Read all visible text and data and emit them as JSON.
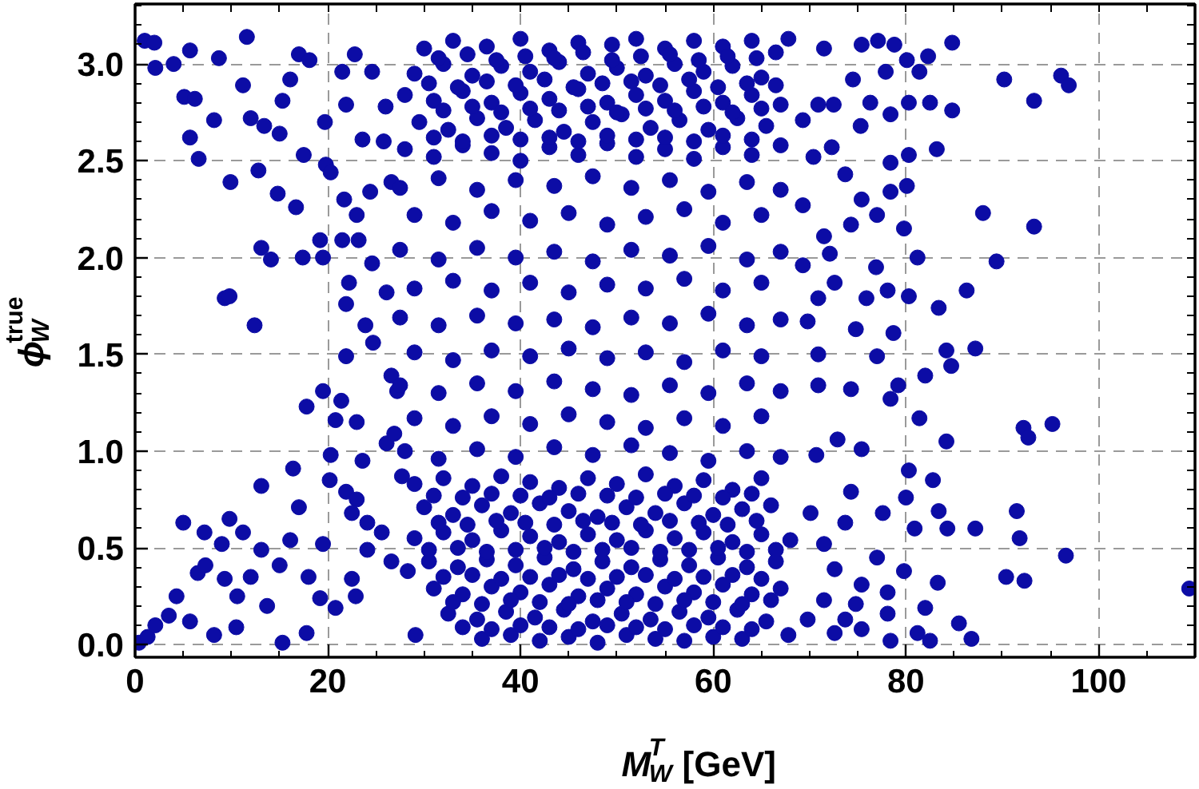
{
  "chart_data": {
    "type": "scatter",
    "xlabel": "M$^{T}$$_{W}$ [GeV]",
    "ylabel": "ϕ$_{W}$$^{true}$",
    "xlim": [
      0,
      110
    ],
    "ylim": [
      -0.065,
      3.31
    ],
    "xticks": [
      0,
      20,
      40,
      60,
      80,
      100
    ],
    "yticks": [
      {
        "value": 0,
        "label": "0.0"
      },
      0.5,
      {
        "value": 1,
        "label": "1.0"
      },
      1.5,
      {
        "value": 2,
        "label": "2.0"
      },
      2.5,
      {
        "value": 3,
        "label": "3.0"
      }
    ],
    "grid": true,
    "marker": "circle",
    "series": [
      {
        "color": "#0c0ca5",
        "x": [
          1.0,
          2.0,
          2.1,
          4.0,
          5.7,
          5.1,
          6.2,
          5.7,
          6.6,
          8.7,
          8.2,
          9.9,
          11.6,
          11.2,
          12.0,
          13.1,
          14.1,
          9.3,
          9.8,
          12.4,
          12.8,
          13.4,
          15.0,
          15.3,
          16.1,
          17.0,
          18.1,
          17.5,
          14.8,
          16.7,
          19.2,
          19.5,
          19.8,
          17.4,
          0.4,
          1.3,
          2.1,
          3.5,
          4.3,
          5.0,
          5.7,
          6.5,
          7.2,
          7.3,
          8.2,
          9.0,
          9.3,
          9.8,
          10.6,
          10.5,
          11.2,
          12.0,
          13.1,
          13.1,
          13.7,
          15.0,
          15.3,
          16.1,
          16.4,
          17.0,
          17.8,
          18.0,
          17.8,
          19.2,
          19.5,
          20.2,
          20.3,
          19.5,
          20.8,
          21.4,
          22.5,
          22.9,
          21.5,
          22.8,
          24.6,
          26.0,
          21.9,
          23.6,
          19.7,
          20.3,
          21.7,
          23.0,
          24.4,
          21.5,
          23.2,
          25.8,
          26.6,
          24.6,
          22.2,
          26.1,
          21.9,
          23.9,
          21.9,
          24.7,
          26.6,
          20.8,
          23.0,
          23.6,
          26.1,
          21.9,
          23.0,
          22.5,
          24.1,
          25.6,
          24.1,
          26.6,
          27.7,
          26.9,
          28.3,
          29.1,
          27.2,
          30,
          33,
          36.5,
          40,
          43,
          46,
          49.5,
          52,
          55,
          58,
          61,
          64,
          66.5,
          29,
          32,
          35,
          38,
          41,
          44,
          47,
          50,
          53,
          56,
          59,
          62,
          65,
          28,
          31,
          34,
          37,
          40,
          43,
          46,
          49,
          52,
          55,
          58,
          61,
          64,
          67,
          29.5,
          32.5,
          35.5,
          38.5,
          41.5,
          44.5,
          47.5,
          50.5,
          53.5,
          56.5,
          59.5,
          62.5,
          65.5,
          28,
          31,
          34,
          37,
          40,
          43,
          46,
          49,
          52,
          55,
          58,
          61,
          64,
          67,
          27.5,
          31.5,
          35.5,
          39.5,
          43.5,
          47.5,
          51.5,
          55.5,
          59.5,
          63.5,
          67,
          29,
          33,
          37,
          41,
          45,
          49,
          53,
          57,
          61,
          65,
          27.5,
          31.5,
          35.5,
          39.5,
          43.5,
          47.5,
          51.5,
          55.5,
          59.5,
          63.5,
          67,
          29,
          33,
          37,
          41,
          45,
          49,
          53,
          57,
          61,
          65,
          27.5,
          31.5,
          35.5,
          39.5,
          43.5,
          47.5,
          51.5,
          55.5,
          59.5,
          63.5,
          67,
          29,
          33,
          37,
          41,
          45,
          49,
          53,
          57,
          61,
          65,
          27.5,
          31.5,
          35.5,
          39.5,
          43.5,
          47.5,
          51.5,
          55.5,
          59.5,
          63.5,
          67,
          29,
          33,
          37,
          41,
          45,
          49,
          53,
          57,
          61,
          65,
          28,
          31.5,
          35.5,
          39.5,
          43.5,
          47.5,
          51.5,
          55.5,
          59.5,
          63.5,
          67,
          29,
          32,
          35,
          38,
          41,
          44,
          47,
          50,
          53,
          56,
          59,
          62,
          65,
          30,
          33,
          36,
          39,
          42,
          45,
          48,
          51,
          54,
          57,
          60,
          63,
          66,
          29,
          32,
          35,
          38,
          41,
          44,
          47,
          50,
          53,
          56,
          59,
          62,
          65,
          68,
          30.5,
          33.5,
          36.5,
          39.5,
          42.5,
          45.5,
          48.5,
          51.5,
          54.5,
          57.5,
          60.5,
          63.5,
          66.5,
          31,
          34,
          37,
          40,
          43,
          46,
          49,
          52,
          55,
          58,
          61,
          64,
          67,
          32.5,
          35.5,
          38.5,
          41.5,
          44.5,
          47.5,
          50.5,
          53.5,
          56.5,
          59.5,
          62.5,
          65.5,
          36,
          39,
          42,
          45,
          48,
          51,
          54,
          57,
          60,
          63,
          84.8,
          90.2,
          96.1,
          96.9,
          93.3,
          84.8,
          88.0,
          93.3,
          89.4,
          86.3,
          87.2,
          83.2,
          82.3,
          92.2,
          95.2,
          92.7,
          91.5,
          91.8,
          96.6,
          90.4,
          92.3,
          109.4,
          87.2,
          86.8,
          85.5,
          84.3,
          83.3,
          67.8,
          71.5,
          75.4,
          77.1,
          78.8,
          80.1,
          74.5,
          77.9,
          81.4,
          80.3,
          82.5,
          76.3,
          72.5,
          70.9,
          69.3,
          78.4,
          75.3,
          72.3,
          78.4,
          80.3,
          70.4,
          73.7,
          80.1,
          75.4,
          78.4,
          69.3,
          71.5,
          74.3,
          77.0,
          79.8,
          81.2,
          76.9,
          72.1,
          69.3,
          72.6,
          78.1,
          83.4,
          80.3,
          75.9,
          70.9,
          69.8,
          74.8,
          78.7,
          84.2,
          70.9,
          77.0,
          84.7,
          82.0,
          70.9,
          74.3,
          79.2,
          78.4,
          81.4,
          84.2,
          72.9,
          75.4,
          80.3,
          82.8,
          70.7,
          74.3,
          77.6,
          83.4,
          80.0,
          70.1,
          73.7,
          80.9,
          71.5,
          77.0,
          79.8,
          72.6,
          75.4,
          78.1,
          71.5,
          74.8,
          82.0,
          78.1,
          73.7,
          72.6,
          75.4,
          78.4,
          81.2,
          82.5,
          69.8,
          67.8,
          31.5,
          34.5,
          37.5,
          40.5,
          43.5,
          46.5,
          49.5,
          52.5,
          55.5,
          58.5,
          61.5,
          64.5,
          30.5,
          33.5,
          36.5,
          39.5,
          42.5,
          45.5,
          48.5,
          51.5,
          54.5,
          57.5,
          60.5,
          63.5,
          66.5,
          32,
          35,
          38,
          41,
          44,
          47,
          50,
          53,
          56,
          59,
          62,
          65,
          31,
          34,
          37,
          40,
          43,
          46,
          49,
          52,
          55,
          58,
          61,
          64,
          31,
          34,
          37,
          40,
          43,
          46,
          49,
          52,
          55,
          58,
          61,
          64,
          31.5,
          34.5,
          37.5,
          40.5,
          43.5,
          46.5,
          49.5,
          52.5,
          55.5,
          58.5,
          61.5,
          64.5,
          30.5,
          33.5,
          36.5,
          39.5,
          42.5,
          45.5,
          48.5,
          51.5,
          54.5,
          57.5,
          60.5,
          63.5,
          66.5,
          32,
          35,
          38,
          41,
          44,
          47,
          50,
          53,
          56,
          59,
          62,
          65,
          33,
          36,
          39,
          42,
          45,
          48,
          51,
          54,
          57,
          60,
          63,
          66,
          34,
          37,
          40,
          43,
          46,
          49,
          52,
          55,
          58,
          61,
          64
        ],
        "values": [
          3.12,
          3.11,
          2.98,
          3.0,
          3.07,
          2.83,
          2.82,
          2.62,
          2.51,
          3.03,
          2.71,
          2.39,
          3.14,
          2.89,
          2.72,
          2.05,
          1.99,
          1.79,
          1.8,
          1.65,
          2.45,
          2.68,
          2.64,
          2.81,
          2.92,
          3.05,
          3.02,
          2.53,
          2.33,
          2.26,
          2.09,
          2.0,
          2.48,
          2.0,
          0.01,
          0.04,
          0.1,
          0.15,
          0.25,
          0.63,
          0.12,
          0.37,
          0.58,
          0.41,
          0.05,
          0.52,
          0.34,
          0.65,
          0.25,
          0.09,
          0.58,
          0.35,
          0.82,
          0.49,
          0.2,
          0.41,
          0.01,
          0.54,
          0.91,
          0.71,
          0.06,
          0.35,
          1.23,
          0.24,
          0.52,
          0.85,
          0.98,
          1.31,
          0.19,
          1.26,
          0.34,
          0.25,
          2.96,
          3.05,
          2.96,
          2.78,
          2.79,
          2.61,
          2.7,
          2.44,
          2.3,
          2.22,
          2.34,
          2.09,
          2.09,
          2.6,
          2.39,
          1.97,
          1.87,
          1.82,
          1.76,
          1.65,
          1.49,
          1.56,
          1.39,
          1.16,
          1.15,
          0.95,
          1.04,
          0.79,
          0.75,
          0.68,
          0.63,
          0.58,
          0.49,
          0.43,
          0.87,
          1.09,
          0.38,
          0.05,
          1.31,
          3.08,
          3.12,
          3.09,
          3.13,
          3.07,
          3.11,
          3.1,
          3.13,
          3.08,
          3.12,
          3.09,
          3.12,
          3.06,
          2.95,
          3.0,
          2.94,
          2.99,
          2.96,
          3.01,
          2.95,
          2.98,
          2.94,
          3.0,
          2.96,
          2.99,
          2.93,
          2.84,
          2.81,
          2.86,
          2.8,
          2.85,
          2.82,
          2.87,
          2.8,
          2.84,
          2.81,
          2.86,
          2.8,
          2.84,
          2.79,
          2.7,
          2.66,
          2.72,
          2.67,
          2.71,
          2.65,
          2.7,
          2.74,
          2.67,
          2.71,
          2.66,
          2.72,
          2.68,
          2.56,
          2.52,
          2.58,
          2.54,
          2.5,
          2.57,
          2.53,
          2.59,
          2.52,
          2.56,
          2.51,
          2.57,
          2.53,
          2.58,
          2.36,
          2.41,
          2.35,
          2.4,
          2.37,
          2.42,
          2.36,
          2.4,
          2.34,
          2.39,
          2.35,
          2.22,
          2.18,
          2.24,
          2.19,
          2.23,
          2.17,
          2.21,
          2.25,
          2.18,
          2.22,
          2.04,
          1.99,
          2.05,
          2.0,
          2.03,
          1.98,
          2.04,
          2.01,
          2.06,
          1.99,
          2.03,
          1.84,
          1.88,
          1.83,
          1.87,
          1.82,
          1.86,
          1.84,
          1.89,
          1.83,
          1.87,
          1.69,
          1.65,
          1.7,
          1.66,
          1.68,
          1.64,
          1.69,
          1.66,
          1.71,
          1.65,
          1.68,
          1.51,
          1.47,
          1.52,
          1.49,
          1.53,
          1.48,
          1.51,
          1.46,
          1.52,
          1.49,
          1.34,
          1.3,
          1.35,
          1.31,
          1.36,
          1.32,
          1.29,
          1.34,
          1.3,
          1.35,
          1.31,
          1.17,
          1.13,
          1.18,
          1.14,
          1.19,
          1.15,
          1.12,
          1.17,
          1.13,
          1.18,
          1.0,
          0.96,
          1.01,
          0.97,
          1.02,
          0.98,
          1.03,
          0.99,
          0.95,
          1.0,
          0.97,
          0.83,
          0.86,
          0.82,
          0.87,
          0.84,
          0.81,
          0.86,
          0.83,
          0.88,
          0.82,
          0.85,
          0.8,
          0.86,
          0.71,
          0.67,
          0.72,
          0.68,
          0.73,
          0.69,
          0.66,
          0.71,
          0.68,
          0.73,
          0.67,
          0.7,
          0.72,
          0.55,
          0.58,
          0.54,
          0.59,
          0.56,
          0.53,
          0.57,
          0.54,
          0.59,
          0.55,
          0.58,
          0.53,
          0.57,
          0.54,
          0.43,
          0.4,
          0.44,
          0.41,
          0.45,
          0.39,
          0.43,
          0.4,
          0.44,
          0.41,
          0.45,
          0.4,
          0.43,
          0.29,
          0.26,
          0.3,
          0.27,
          0.31,
          0.25,
          0.29,
          0.26,
          0.3,
          0.27,
          0.31,
          0.26,
          0.29,
          0.16,
          0.13,
          0.17,
          0.14,
          0.18,
          0.12,
          0.16,
          0.13,
          0.17,
          0.14,
          0.18,
          0.12,
          0.03,
          0.05,
          0.02,
          0.04,
          0.01,
          0.05,
          0.03,
          0.02,
          0.04,
          0.03,
          3.11,
          2.92,
          2.94,
          2.89,
          2.81,
          2.76,
          2.23,
          2.16,
          1.98,
          1.83,
          1.53,
          2.56,
          3.04,
          1.12,
          1.14,
          1.07,
          0.69,
          0.55,
          0.46,
          0.35,
          0.33,
          0.29,
          0.6,
          0.03,
          0.11,
          0.6,
          0.32,
          3.13,
          3.08,
          3.1,
          3.12,
          3.1,
          3.02,
          2.92,
          2.96,
          2.96,
          2.8,
          2.8,
          2.8,
          2.79,
          2.79,
          2.71,
          2.74,
          2.68,
          2.57,
          2.49,
          2.53,
          2.52,
          2.43,
          2.37,
          2.3,
          2.34,
          2.27,
          2.11,
          2.17,
          2.22,
          2.15,
          2.0,
          1.95,
          2.02,
          1.96,
          1.87,
          1.83,
          1.74,
          1.8,
          1.79,
          1.79,
          1.67,
          1.63,
          1.61,
          1.52,
          1.5,
          1.49,
          1.44,
          1.39,
          1.34,
          1.32,
          1.34,
          1.27,
          1.17,
          1.05,
          1.06,
          1.01,
          0.9,
          0.85,
          0.98,
          0.79,
          0.68,
          0.69,
          0.76,
          0.68,
          0.63,
          0.6,
          0.52,
          0.45,
          0.38,
          0.39,
          0.31,
          0.27,
          0.23,
          0.21,
          0.19,
          0.16,
          0.13,
          0.06,
          0.08,
          0.02,
          0.06,
          0.02,
          0.13,
          0.05,
          3.03,
          3.05,
          3.02,
          3.04,
          3.03,
          3.06,
          3.02,
          3.04,
          3.05,
          3.02,
          3.04,
          3.03,
          2.9,
          2.88,
          2.91,
          2.89,
          2.92,
          2.88,
          2.9,
          2.91,
          2.89,
          2.92,
          2.88,
          2.9,
          2.89,
          2.76,
          2.78,
          2.75,
          2.77,
          2.76,
          2.78,
          2.75,
          2.77,
          2.76,
          2.78,
          2.75,
          2.77,
          2.62,
          2.6,
          2.63,
          2.61,
          2.62,
          2.6,
          2.63,
          2.61,
          2.62,
          2.6,
          2.63,
          2.61,
          0.77,
          0.76,
          0.78,
          0.77,
          0.76,
          0.78,
          0.77,
          0.76,
          0.78,
          0.77,
          0.76,
          0.78,
          0.63,
          0.62,
          0.64,
          0.63,
          0.62,
          0.64,
          0.63,
          0.62,
          0.64,
          0.63,
          0.62,
          0.64,
          0.49,
          0.5,
          0.48,
          0.49,
          0.5,
          0.48,
          0.49,
          0.5,
          0.48,
          0.49,
          0.5,
          0.48,
          0.49,
          0.35,
          0.36,
          0.34,
          0.35,
          0.36,
          0.34,
          0.35,
          0.36,
          0.34,
          0.35,
          0.36,
          0.34,
          0.22,
          0.21,
          0.23,
          0.22,
          0.21,
          0.23,
          0.22,
          0.21,
          0.23,
          0.22,
          0.21,
          0.23,
          0.09,
          0.08,
          0.1,
          0.09,
          0.08,
          0.1,
          0.09,
          0.08,
          0.1,
          0.09,
          0.08
        ]
      }
    ]
  }
}
